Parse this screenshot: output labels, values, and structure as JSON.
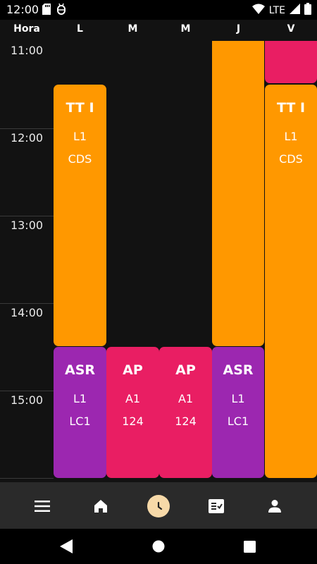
{
  "status_bar": {
    "time": "12:00",
    "network": "LTE"
  },
  "header": {
    "hour_column_label": "Hora",
    "days": [
      "L",
      "M",
      "M",
      "J",
      "V"
    ]
  },
  "hours": [
    "11:00",
    "12:00",
    "13:00",
    "14:00",
    "15:00"
  ],
  "colors": {
    "orange": "#ff9800",
    "pink": "#e91e63",
    "purple": "#9c27b0",
    "nav_active": "#f7d9a8"
  },
  "classes": {
    "mon_tt": {
      "subject": "TT I",
      "group": "L1",
      "room": "CDS"
    },
    "mon_asr": {
      "subject": "ASR",
      "group": "L1",
      "room": "LC1"
    },
    "tue_ap": {
      "subject": "AP",
      "group": "A1",
      "room": "124"
    },
    "wed_ap": {
      "subject": "AP",
      "group": "A1",
      "room": "124"
    },
    "thu_asr": {
      "subject": "ASR",
      "group": "L1",
      "room": "LC1"
    },
    "fri_tt": {
      "subject": "TT I",
      "group": "L1",
      "room": "CDS"
    }
  },
  "bottom_nav": {
    "items": [
      "menu-icon",
      "home-icon",
      "clock-icon",
      "tasks-icon",
      "profile-icon"
    ],
    "active": "clock-icon"
  }
}
